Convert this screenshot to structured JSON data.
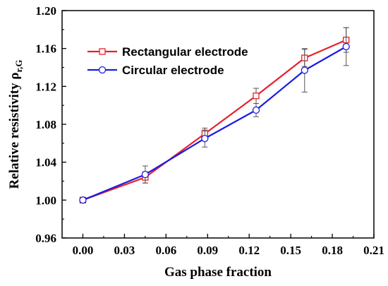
{
  "chart_data": {
    "type": "line",
    "xlabel": "Gas phase fraction",
    "ylabel_main": "Relative resistivity ρ",
    "ylabel_sub": "r,G",
    "xlim": [
      -0.015,
      0.21
    ],
    "ylim": [
      0.96,
      1.2
    ],
    "xticks": [
      "0.00",
      "0.03",
      "0.06",
      "0.09",
      "0.12",
      "0.15",
      "0.18",
      "0.21"
    ],
    "yticks": [
      "0.96",
      "1.00",
      "1.04",
      "1.08",
      "1.12",
      "1.16",
      "1.20"
    ],
    "grid": false,
    "legend_position": "upper-left",
    "series": [
      {
        "name": "Rectangular electrode",
        "color": "#e8202a",
        "marker": "square",
        "x": [
          0.0,
          0.045,
          0.088,
          0.125,
          0.16,
          0.19
        ],
        "y": [
          1.0,
          1.024,
          1.07,
          1.11,
          1.15,
          1.169
        ],
        "err": [
          0.0,
          0.006,
          0.006,
          0.008,
          0.009,
          0.013
        ]
      },
      {
        "name": "Circular electrode",
        "color": "#1c1ce0",
        "marker": "circle",
        "x": [
          0.0,
          0.045,
          0.088,
          0.125,
          0.16,
          0.19
        ],
        "y": [
          1.0,
          1.027,
          1.065,
          1.095,
          1.137,
          1.162
        ],
        "err": [
          0.0,
          0.009,
          0.009,
          0.007,
          0.023,
          0.02
        ]
      }
    ]
  }
}
